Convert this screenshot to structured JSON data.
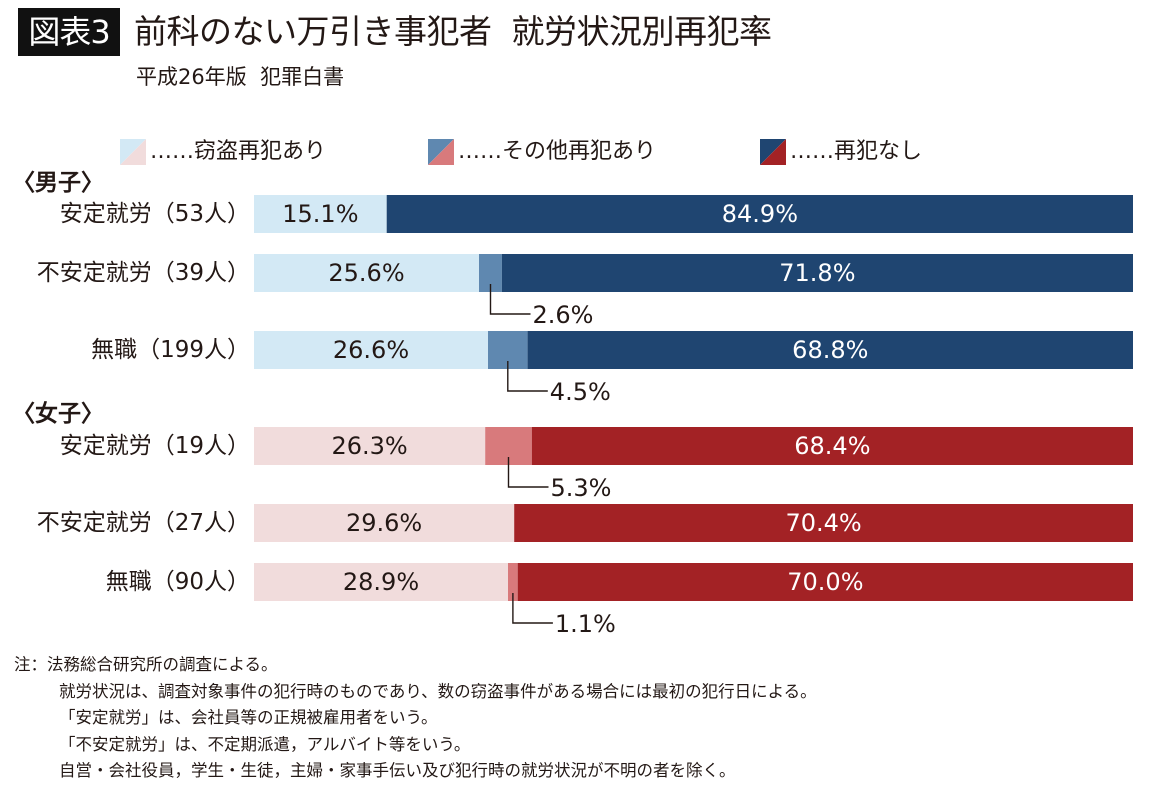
{
  "header": {
    "badge": "図表3",
    "title": "前科のない万引き事犯者  就労状況別再犯率",
    "subtitle": "平成26年版  犯罪白書"
  },
  "legend": [
    {
      "label": "……窃盗再犯あり",
      "male_color": "#d3e9f5",
      "female_color": "#f1dcdc"
    },
    {
      "label": "……その他再犯あり",
      "male_color": "#5f88b0",
      "female_color": "#d87a7c"
    },
    {
      "label": "……再犯なし",
      "male_color": "#1f4571",
      "female_color": "#a32225"
    }
  ],
  "groups": [
    {
      "label": "〈男子〉"
    },
    {
      "label": "〈女子〉"
    }
  ],
  "chart_data": {
    "type": "bar",
    "orientation": "horizontal-stacked-100",
    "title": "前科のない万引き事犯者  就労状況別再犯率",
    "subtitle": "平成26年版  犯罪白書",
    "xlabel": "",
    "ylabel": "",
    "xlim": [
      0,
      100
    ],
    "unit": "%",
    "grid": false,
    "legend_position": "top",
    "categories": [
      "安定就労（53人）",
      "不安定就労（39人）",
      "無職（199人）",
      "安定就労（19人）",
      "不安定就労（27人）",
      "無職（90人）"
    ],
    "category_groups": [
      "男子",
      "男子",
      "男子",
      "女子",
      "女子",
      "女子"
    ],
    "series": [
      {
        "name": "窃盗再犯あり",
        "values": [
          15.1,
          25.6,
          26.6,
          26.3,
          29.6,
          28.9
        ],
        "labels": [
          "15.1%",
          "25.6%",
          "26.6%",
          "26.3%",
          "29.6%",
          "28.9%"
        ]
      },
      {
        "name": "その他再犯あり",
        "values": [
          0.0,
          2.6,
          4.5,
          5.3,
          0.0,
          1.1
        ],
        "labels": [
          "",
          "2.6%",
          "4.5%",
          "5.3%",
          "",
          "1.1%"
        ]
      },
      {
        "name": "再犯なし",
        "values": [
          84.9,
          71.8,
          68.8,
          68.4,
          70.4,
          70.0
        ],
        "labels": [
          "84.9%",
          "71.8%",
          "68.8%",
          "68.4%",
          "70.4%",
          "70.0%"
        ]
      }
    ]
  },
  "notes": [
    "注：法務総合研究所の調査による。",
    "就労状況は、調査対象事件の犯行時のものであり、数の窃盗事件がある場合には最初の犯行日による。",
    "「安定就労」は、会社員等の正規被雇用者をいう。",
    "「不安定就労」は、不定期派遣，アルバイト等をいう。",
    "自営・会社役員，学生・生徒，主婦・家事手伝い及び犯行時の就労状況が不明の者を除く。"
  ]
}
